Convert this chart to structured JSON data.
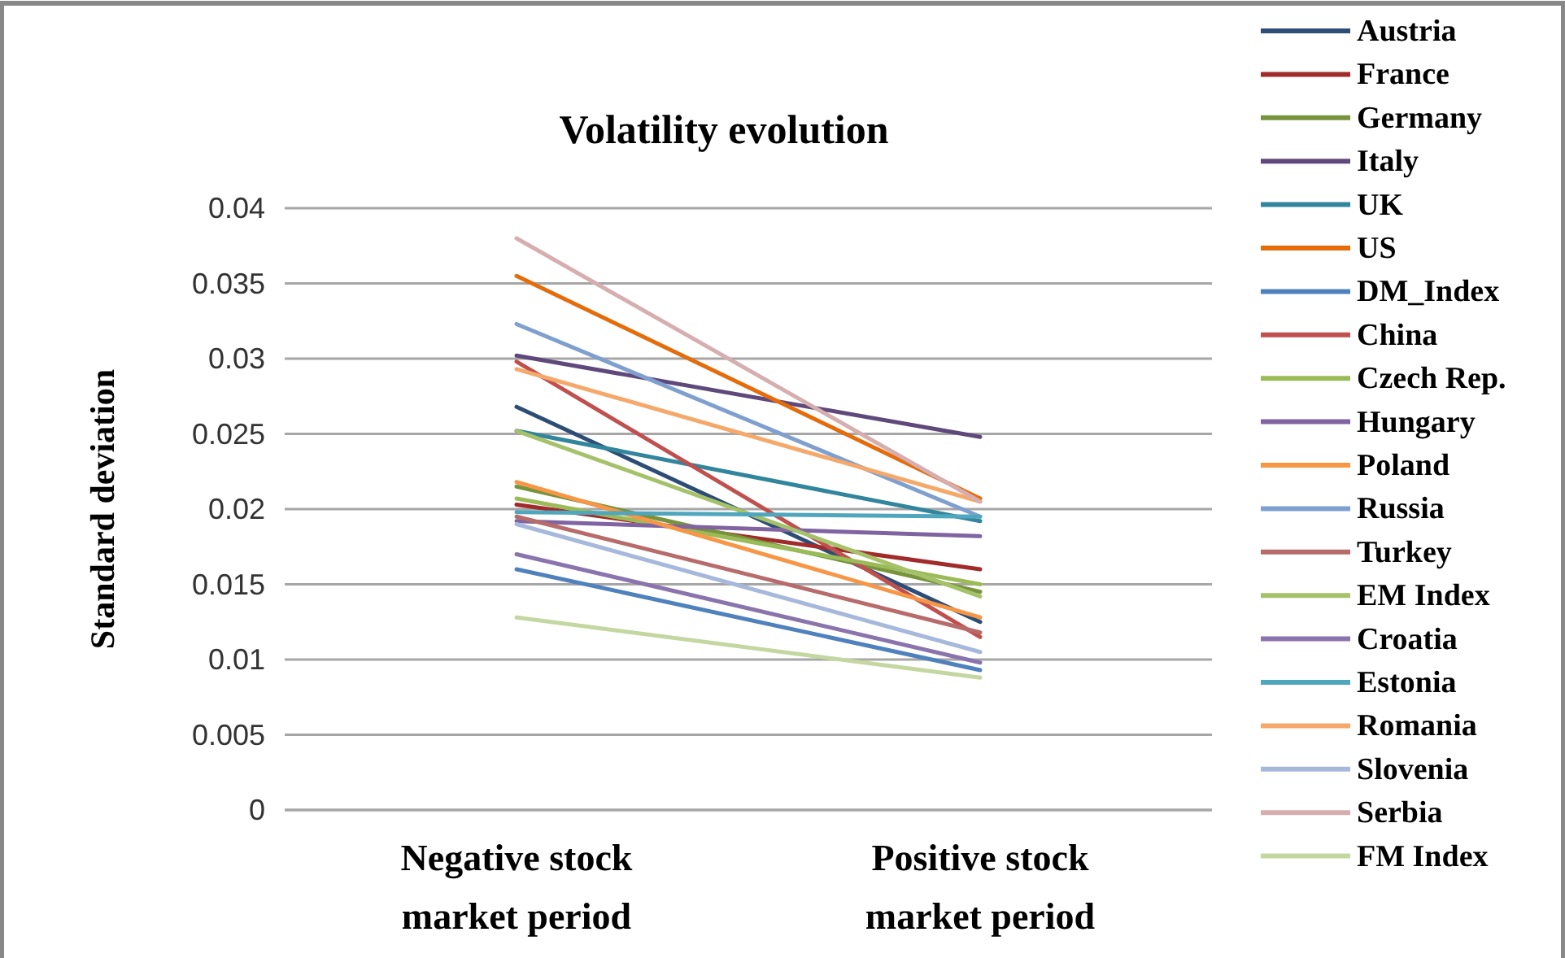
{
  "chart_data": {
    "type": "line",
    "title": "Volatility evolution",
    "ylabel": "Standard deviation",
    "categories": [
      "Negative stock market period",
      "Positive stock market period"
    ],
    "ylim": [
      0,
      0.04
    ],
    "yticks": [
      0,
      0.005,
      0.01,
      0.015,
      0.02,
      0.025,
      0.03,
      0.035,
      0.04
    ],
    "grid": "y",
    "legend": "right",
    "marker": "none",
    "series": [
      {
        "name": "Austria",
        "color": "#2c4d75",
        "values": [
          0.0268,
          0.0125
        ]
      },
      {
        "name": "France",
        "color": "#a12b2b",
        "values": [
          0.0203,
          0.016
        ]
      },
      {
        "name": "Germany",
        "color": "#77933c",
        "values": [
          0.0215,
          0.0145
        ]
      },
      {
        "name": "Italy",
        "color": "#5f497a",
        "values": [
          0.0302,
          0.0248
        ]
      },
      {
        "name": "UK",
        "color": "#31859c",
        "values": [
          0.0252,
          0.0192
        ]
      },
      {
        "name": "US",
        "color": "#e46c0a",
        "values": [
          0.0355,
          0.0207
        ]
      },
      {
        "name": "DM_Index",
        "color": "#4f81bd",
        "values": [
          0.016,
          0.0093
        ]
      },
      {
        "name": "China",
        "color": "#c0504d",
        "values": [
          0.0298,
          0.0115
        ]
      },
      {
        "name": "Czech Rep.",
        "color": "#9bbb59",
        "values": [
          0.0207,
          0.015
        ]
      },
      {
        "name": "Hungary",
        "color": "#8064a2",
        "values": [
          0.0192,
          0.0182
        ]
      },
      {
        "name": "Poland",
        "color": "#f79646",
        "values": [
          0.0218,
          0.0128
        ]
      },
      {
        "name": "Russia",
        "color": "#7f9fcf",
        "values": [
          0.0323,
          0.0195
        ]
      },
      {
        "name": "Turkey",
        "color": "#b76b6a",
        "values": [
          0.0195,
          0.0118
        ]
      },
      {
        "name": "EM Index",
        "color": "#a5c26a",
        "values": [
          0.0252,
          0.0142
        ]
      },
      {
        "name": "Croatia",
        "color": "#8a74ad",
        "values": [
          0.017,
          0.0098
        ]
      },
      {
        "name": "Estonia",
        "color": "#4fa6bd",
        "values": [
          0.0198,
          0.0195
        ]
      },
      {
        "name": "Romania",
        "color": "#f5a86a",
        "values": [
          0.0293,
          0.0205
        ]
      },
      {
        "name": "Slovenia",
        "color": "#a6b8dc",
        "values": [
          0.019,
          0.0105
        ]
      },
      {
        "name": "Serbia",
        "color": "#d6aeb0",
        "values": [
          0.038,
          0.0205
        ]
      },
      {
        "name": "FM Index",
        "color": "#c4d7a0",
        "values": [
          0.0128,
          0.0088
        ]
      }
    ]
  }
}
